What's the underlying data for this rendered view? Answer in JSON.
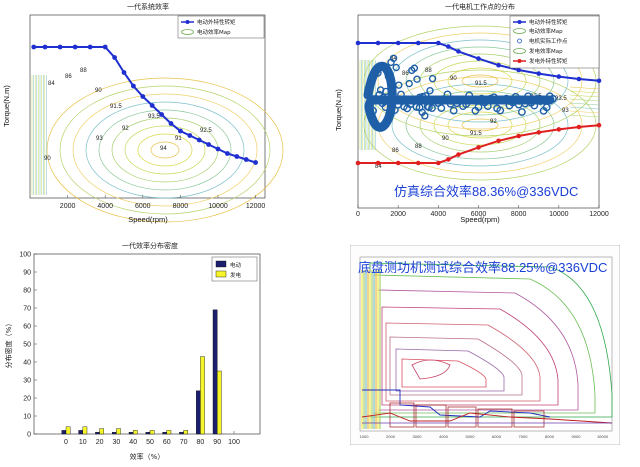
{
  "chart_data": [
    {
      "type": "line",
      "id": "tl",
      "title": "一代系统效率",
      "xlabel": "Speed(rpm)",
      "ylabel": "Torque(N.m)",
      "x_ticks": [
        "2000",
        "4000",
        "6000",
        "8000",
        "10000",
        "12000"
      ],
      "xlim": [
        0,
        12500
      ],
      "legend": [
        "电动外特性转矩",
        "电动效率Map"
      ],
      "legend_position": "top-right",
      "series": [
        {
          "name": "电动外特性转矩",
          "color": "#1f2fd0",
          "x": [
            200,
            800,
            1600,
            2400,
            3200,
            4000,
            4500,
            5000,
            5500,
            6000,
            6500,
            7000,
            7500,
            8000,
            8500,
            9000,
            9500,
            10000,
            10500,
            11000,
            11500,
            12000
          ],
          "y": [
            1.0,
            1.0,
            1.0,
            1.0,
            1.0,
            1.0,
            0.93,
            0.83,
            0.74,
            0.67,
            0.61,
            0.55,
            0.49,
            0.44,
            0.41,
            0.38,
            0.35,
            0.32,
            0.29,
            0.27,
            0.25,
            0.23
          ]
        }
      ],
      "contour_labels": [
        "84",
        "86",
        "88",
        "90",
        "91.5",
        "92",
        "93",
        "93.5",
        "94",
        "91",
        "92.5",
        "90"
      ]
    },
    {
      "type": "line",
      "id": "tr",
      "title": "一代电机工作点的分布",
      "xlabel": "Speed(rpm)",
      "ylabel": "Torque(N.m)",
      "x_ticks": [
        "0",
        "2000",
        "4000",
        "6000",
        "8000",
        "10000",
        "12000"
      ],
      "xlim": [
        0,
        12000
      ],
      "legend": [
        "电动外特性转矩",
        "电动效率Map",
        "电机实际工作点",
        "发电效率Map",
        "发电外特性转矩"
      ],
      "legend_position": "top-right",
      "annotation": "仿真综合效率88.36%@336VDC",
      "series": [
        {
          "name": "电动外特性转矩",
          "color": "#1f2fd0",
          "x": [
            0,
            1000,
            2000,
            3000,
            4000,
            4500,
            5000,
            6000,
            7000,
            8000,
            9000,
            10000,
            11000,
            12000
          ],
          "y": [
            1.0,
            1.0,
            1.0,
            1.0,
            1.0,
            0.94,
            0.86,
            0.74,
            0.63,
            0.55,
            0.49,
            0.44,
            0.4,
            0.37
          ]
        },
        {
          "name": "发电外特性转矩",
          "color": "#e02020",
          "x": [
            0,
            1000,
            2000,
            3000,
            4000,
            4500,
            5000,
            6000,
            7000,
            8000,
            9000,
            10000,
            11000,
            12000
          ],
          "y": [
            -1.0,
            -1.0,
            -1.0,
            -1.0,
            -1.0,
            -0.94,
            -0.86,
            -0.74,
            -0.63,
            -0.55,
            -0.49,
            -0.44,
            -0.4,
            -0.37
          ]
        }
      ],
      "contour_labels": [
        "84",
        "86",
        "88",
        "90",
        "91.5",
        "92.5",
        "93.5",
        "93",
        "92",
        "91.5",
        "90",
        "88",
        "86",
        "84"
      ]
    },
    {
      "type": "bar",
      "id": "bl",
      "title": "一代效率分布密度",
      "xlabel": "效率（%）",
      "ylabel": "分布密度（%）",
      "categories": [
        "0",
        "10",
        "20",
        "30",
        "40",
        "50",
        "60",
        "70",
        "80",
        "90",
        "100"
      ],
      "ylim": [
        0,
        100
      ],
      "y_ticks": [
        "0",
        "10",
        "20",
        "30",
        "40",
        "50",
        "60",
        "70",
        "80",
        "90",
        "100"
      ],
      "legend_position": "top-right",
      "series": [
        {
          "name": "电动",
          "color": "#1b1f6e",
          "values": [
            2,
            2,
            1,
            1,
            1,
            1,
            1,
            1,
            24,
            69,
            0
          ]
        },
        {
          "name": "发电",
          "color": "#f5f52a",
          "values": [
            4,
            4,
            3,
            3,
            2,
            2,
            2,
            2,
            43,
            35,
            0
          ]
        }
      ]
    },
    {
      "type": "line",
      "id": "br",
      "title": "底盘测功机测试综合效率88.25%@336VDC",
      "x_ticks": [
        "1000",
        "2000",
        "3000",
        "4000",
        "5000",
        "6000",
        "7000",
        "8000",
        "9000",
        "10000"
      ]
    }
  ]
}
